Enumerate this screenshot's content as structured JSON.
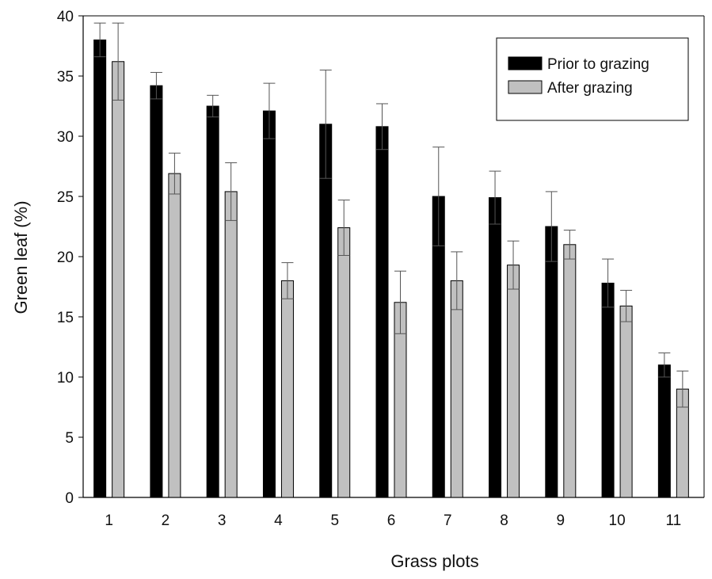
{
  "chart_data": {
    "type": "bar",
    "xlabel": "Grass plots",
    "ylabel": "Green leaf (%)",
    "ylim": [
      0,
      40
    ],
    "yticks": [
      0,
      5,
      10,
      15,
      20,
      25,
      30,
      35,
      40
    ],
    "categories": [
      "1",
      "2",
      "3",
      "4",
      "5",
      "6",
      "7",
      "8",
      "9",
      "10",
      "11"
    ],
    "grid": false,
    "legend_position": "top-right",
    "series": [
      {
        "name": "Prior to grazing",
        "color": "#000000",
        "values": [
          38.0,
          34.2,
          32.5,
          32.1,
          31.0,
          30.8,
          25.0,
          24.9,
          22.5,
          17.8,
          11.0
        ],
        "error": [
          1.4,
          1.1,
          0.9,
          2.3,
          4.5,
          1.9,
          4.1,
          2.2,
          2.9,
          2.0,
          1.0
        ]
      },
      {
        "name": "After grazing",
        "color": "#c0c0c0",
        "values": [
          36.2,
          26.9,
          25.4,
          18.0,
          22.4,
          16.2,
          18.0,
          19.3,
          21.0,
          15.9,
          9.0
        ],
        "error": [
          3.2,
          1.7,
          2.4,
          1.5,
          2.3,
          2.6,
          2.4,
          2.0,
          1.2,
          1.3,
          1.5
        ]
      }
    ]
  }
}
